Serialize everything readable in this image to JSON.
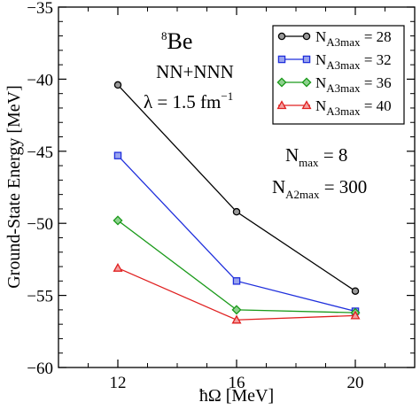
{
  "chart_data": {
    "type": "line",
    "xlabel": "ħΩ [MeV]",
    "ylabel": "Ground-State Energy [MeV]",
    "x": [
      12,
      16,
      20
    ],
    "xlim": [
      10,
      22
    ],
    "ylim": [
      -60,
      -35
    ],
    "xticks": [
      12,
      16,
      20
    ],
    "yticks": [
      -60,
      -55,
      -50,
      -45,
      -40,
      -35
    ],
    "grid": false,
    "legend_position": "top-right",
    "series": [
      {
        "name_main": "N",
        "name_sub": "A3max",
        "name_value": "= 28",
        "color": "#000000",
        "marker": "circle",
        "values": [
          -40.4,
          -49.2,
          -54.7
        ]
      },
      {
        "name_main": "N",
        "name_sub": "A3max",
        "name_value": "= 32",
        "color": "#1f2fdc",
        "marker": "square",
        "values": [
          -45.3,
          -54.0,
          -56.1
        ]
      },
      {
        "name_main": "N",
        "name_sub": "A3max",
        "name_value": "= 36",
        "color": "#1a9a1a",
        "marker": "diamond",
        "values": [
          -49.8,
          -56.0,
          -56.2
        ]
      },
      {
        "name_main": "N",
        "name_sub": "A3max",
        "name_value": "= 40",
        "color": "#e02020",
        "marker": "triangle",
        "values": [
          -53.1,
          -56.7,
          -56.4
        ]
      }
    ],
    "annotations": {
      "nucleus_mass": "8",
      "nucleus_symbol": "Be",
      "interaction": "NN+NNN",
      "lambda_prefix": "λ = 1.5 fm",
      "lambda_exp": "−1",
      "nmax_main": "N",
      "nmax_sub": "max",
      "nmax_value": " = 8",
      "na2_main": "N",
      "na2_sub": "A2max",
      "na2_value": " = 300"
    }
  }
}
